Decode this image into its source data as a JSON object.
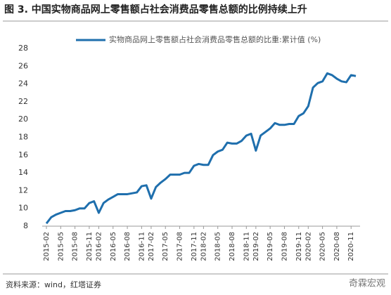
{
  "chart_data": {
    "type": "line",
    "title": "图 3. 中国实物商品网上零售额占社会消费品零售总额的比例持续上升",
    "source": "资料来源：wind，红塔证券",
    "watermark": "奇霖宏观",
    "categories": [
      "2015-02",
      null,
      null,
      "2015-05",
      null,
      null,
      "2015-08",
      null,
      null,
      "2015-11",
      null,
      "2016-02",
      null,
      null,
      "2016-05",
      null,
      null,
      "2016-08",
      null,
      null,
      "2016-11",
      null,
      "2017-02",
      null,
      null,
      "2017-05",
      null,
      null,
      "2017-08",
      null,
      null,
      "2017-11",
      null,
      "2018-02",
      null,
      null,
      "2018-05",
      null,
      null,
      "2018-08",
      null,
      null,
      "2018-11",
      null,
      "2019-02",
      null,
      null,
      "2019-05",
      null,
      null,
      "2019-08",
      null,
      null,
      "2019-11",
      null,
      "2020-02",
      null,
      null,
      "2020-05",
      null,
      null,
      "2020-08",
      null,
      null,
      "2020-11",
      null
    ],
    "series": [
      {
        "name": "实物商品网上零售额占社会消费品零售总额的比重:累计值  (%)",
        "color": "#1f6fad",
        "values": [
          8.3,
          9.0,
          9.3,
          9.5,
          9.7,
          9.7,
          9.8,
          10.0,
          10.0,
          10.6,
          10.8,
          9.5,
          10.6,
          11.0,
          11.3,
          11.6,
          11.6,
          11.6,
          11.7,
          11.8,
          12.5,
          12.6,
          11.1,
          12.4,
          12.9,
          13.3,
          13.8,
          13.8,
          13.8,
          14.0,
          14.0,
          14.8,
          15.0,
          14.9,
          14.9,
          16.0,
          16.4,
          16.6,
          17.4,
          17.3,
          17.3,
          17.6,
          18.2,
          18.4,
          16.5,
          18.2,
          18.6,
          19.0,
          19.6,
          19.4,
          19.4,
          19.5,
          19.5,
          20.4,
          20.7,
          21.5,
          23.6,
          24.1,
          24.3,
          25.2,
          25.0,
          24.6,
          24.3,
          24.2,
          25.0,
          24.9
        ]
      }
    ],
    "ylim": [
      8,
      28
    ],
    "yticks": [
      8,
      10,
      12,
      14,
      16,
      18,
      20,
      22,
      24,
      26,
      28
    ],
    "grid": false
  }
}
